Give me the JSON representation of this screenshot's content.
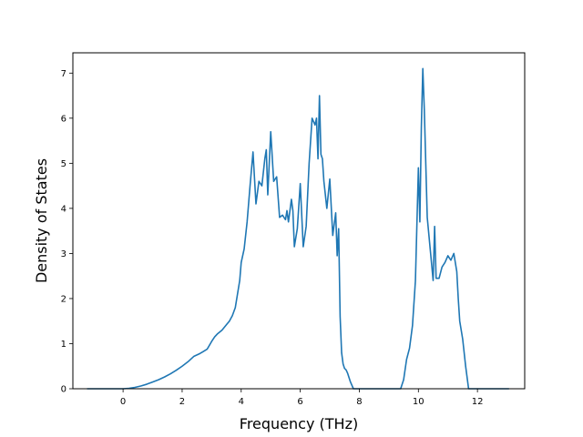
{
  "chart_data": {
    "type": "line",
    "title": "",
    "xlabel": "Frequency (THz)",
    "ylabel": "Density of States",
    "xlim": [
      -1.7,
      13.6
    ],
    "ylim": [
      0,
      7.45
    ],
    "xticks": [
      0,
      2,
      4,
      6,
      8,
      10,
      12
    ],
    "yticks": [
      0,
      1,
      2,
      3,
      4,
      5,
      6,
      7
    ],
    "grid": false,
    "legend": "none",
    "line_color": "#1f77b4",
    "series": [
      {
        "x": [
          -1.22,
          -0.8,
          -0.4,
          0.0,
          0.2,
          0.4,
          0.6,
          0.8,
          1.0,
          1.2,
          1.4,
          1.6,
          1.8,
          2.0,
          2.2,
          2.4,
          2.6,
          2.7,
          2.85,
          3.0,
          3.1,
          3.2,
          3.35,
          3.5,
          3.6,
          3.7,
          3.8,
          3.9,
          3.95,
          4.0,
          4.1,
          4.2,
          4.3,
          4.4,
          4.5,
          4.6,
          4.7,
          4.8,
          4.85,
          4.9,
          5.0,
          5.1,
          5.2,
          5.3,
          5.4,
          5.5,
          5.55,
          5.6,
          5.7,
          5.75,
          5.8,
          5.9,
          6.0,
          6.1,
          6.2,
          6.3,
          6.4,
          6.5,
          6.55,
          6.6,
          6.65,
          6.7,
          6.75,
          6.8,
          6.9,
          7.0,
          7.1,
          7.2,
          7.25,
          7.3,
          7.35,
          7.4,
          7.45,
          7.5,
          7.55,
          7.6,
          7.7,
          7.8,
          7.9,
          8.0,
          8.5,
          9.0,
          9.4,
          9.5,
          9.6,
          9.7,
          9.8,
          9.9,
          10.0,
          10.05,
          10.1,
          10.15,
          10.2,
          10.3,
          10.4,
          10.5,
          10.55,
          10.6,
          10.7,
          10.8,
          10.9,
          11.0,
          11.1,
          11.2,
          11.3,
          11.35,
          11.4,
          11.5,
          11.6,
          11.7,
          11.8,
          11.9,
          12.0,
          12.5,
          13.07
        ],
        "y": [
          0.0,
          0.0,
          0.0,
          0.0,
          0.01,
          0.03,
          0.06,
          0.1,
          0.15,
          0.2,
          0.26,
          0.33,
          0.41,
          0.5,
          0.6,
          0.72,
          0.78,
          0.82,
          0.88,
          1.05,
          1.15,
          1.22,
          1.3,
          1.42,
          1.5,
          1.62,
          1.8,
          2.2,
          2.4,
          2.8,
          3.1,
          3.7,
          4.5,
          5.25,
          4.1,
          4.6,
          4.5,
          5.1,
          5.3,
          4.3,
          5.7,
          4.6,
          4.7,
          3.8,
          3.85,
          3.75,
          3.95,
          3.7,
          4.2,
          3.95,
          3.15,
          3.55,
          4.55,
          3.15,
          3.6,
          5.0,
          6.0,
          5.85,
          6.0,
          5.1,
          6.5,
          5.2,
          5.1,
          4.6,
          4.0,
          4.65,
          3.4,
          3.9,
          2.95,
          3.55,
          1.6,
          0.8,
          0.55,
          0.45,
          0.42,
          0.35,
          0.15,
          0.0,
          0.0,
          0.0,
          0.0,
          0.0,
          0.0,
          0.2,
          0.65,
          0.9,
          1.4,
          2.4,
          4.9,
          3.7,
          5.8,
          7.1,
          6.2,
          3.8,
          3.1,
          2.4,
          3.6,
          2.45,
          2.45,
          2.7,
          2.8,
          2.95,
          2.85,
          3.0,
          2.6,
          2.0,
          1.5,
          1.1,
          0.5,
          0.0,
          0.0,
          0.0,
          0.0,
          0.0,
          0.0
        ]
      }
    ]
  }
}
